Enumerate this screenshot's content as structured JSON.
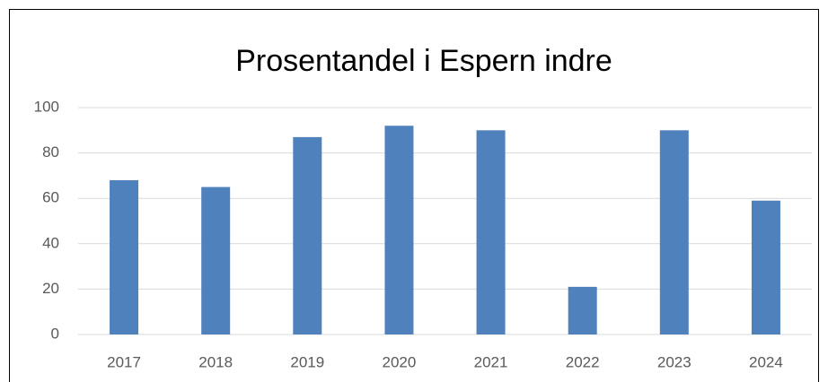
{
  "chart_data": {
    "type": "bar",
    "title": "Prosentandel i Espern indre",
    "categories": [
      "2017",
      "2018",
      "2019",
      "2020",
      "2021",
      "2022",
      "2023",
      "2024"
    ],
    "values": [
      68,
      65,
      87,
      92,
      90,
      21,
      90,
      59
    ],
    "color": "#4f81bd",
    "ylim": [
      0,
      100
    ],
    "yticks": [
      0,
      20,
      40,
      60,
      80,
      100
    ],
    "grid": true
  }
}
